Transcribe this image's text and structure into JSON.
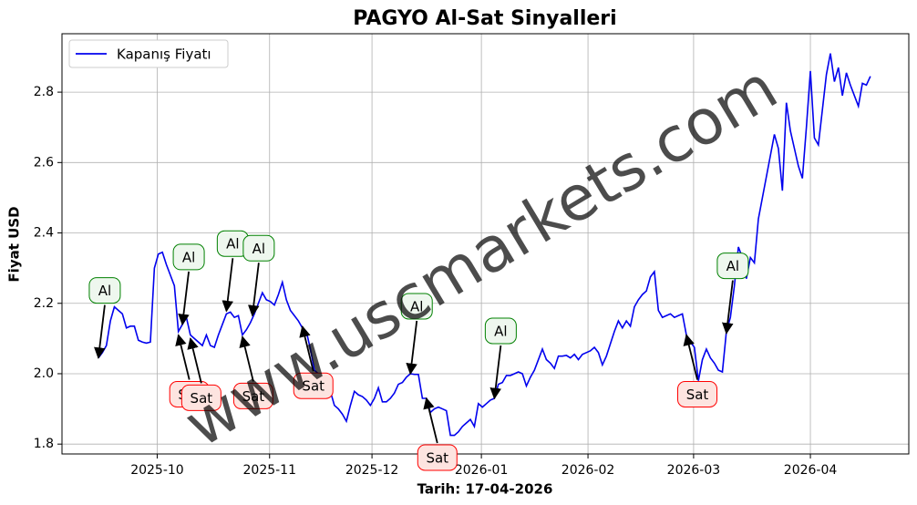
{
  "chart_data": {
    "type": "line",
    "title": "PAGYO Al-Sat Sinyalleri",
    "x_label": "Tarih: 17-04-2026",
    "y_label": "Fiyat USD",
    "series": [
      {
        "name": "Kapanış Fiyatı",
        "color": "#0000ee",
        "values": [
          2.045,
          2.06,
          2.08,
          2.15,
          2.19,
          2.18,
          2.17,
          2.13,
          2.135,
          2.135,
          2.095,
          2.09,
          2.087,
          2.09,
          2.3,
          2.34,
          2.345,
          2.31,
          2.28,
          2.25,
          2.12,
          2.14,
          2.16,
          2.11,
          2.1,
          2.09,
          2.08,
          2.11,
          2.08,
          2.075,
          2.11,
          2.14,
          2.17,
          2.175,
          2.16,
          2.165,
          2.11,
          2.125,
          2.145,
          2.17,
          2.2,
          2.23,
          2.21,
          2.205,
          2.195,
          2.225,
          2.26,
          2.21,
          2.18,
          2.165,
          2.15,
          2.13,
          2.12,
          2.07,
          2.01,
          2.0,
          1.98,
          1.96,
          1.95,
          1.91,
          1.9,
          1.885,
          1.865,
          1.91,
          1.95,
          1.94,
          1.935,
          1.925,
          1.91,
          1.93,
          1.96,
          1.92,
          1.92,
          1.93,
          1.945,
          1.97,
          1.975,
          1.99,
          2.0,
          1.998,
          1.998,
          1.93,
          1.93,
          1.89,
          1.9,
          1.905,
          1.9,
          1.895,
          1.825,
          1.825,
          1.835,
          1.85,
          1.86,
          1.87,
          1.85,
          1.915,
          1.905,
          1.915,
          1.925,
          1.93,
          1.97,
          1.975,
          1.995,
          1.995,
          2.0,
          2.005,
          2.0,
          1.965,
          1.99,
          2.01,
          2.04,
          2.07,
          2.04,
          2.03,
          2.015,
          2.05,
          2.05,
          2.052,
          2.045,
          2.055,
          2.04,
          2.055,
          2.06,
          2.065,
          2.075,
          2.06,
          2.025,
          2.05,
          2.085,
          2.12,
          2.15,
          2.13,
          2.15,
          2.135,
          2.19,
          2.21,
          2.225,
          2.235,
          2.275,
          2.29,
          2.18,
          2.16,
          2.165,
          2.17,
          2.16,
          2.165,
          2.17,
          2.11,
          2.09,
          2.075,
          1.98,
          2.04,
          2.07,
          2.045,
          2.03,
          2.01,
          2.005,
          2.12,
          2.16,
          2.25,
          2.36,
          2.33,
          2.27,
          2.33,
          2.315,
          2.44,
          2.5,
          2.56,
          2.62,
          2.68,
          2.64,
          2.52,
          2.77,
          2.69,
          2.64,
          2.59,
          2.555,
          2.7,
          2.86,
          2.67,
          2.65,
          2.75,
          2.85,
          2.91,
          2.83,
          2.87,
          2.79,
          2.855,
          2.82,
          2.79,
          2.76,
          2.825,
          2.82,
          2.845
        ]
      }
    ],
    "xlim": [
      -9.1,
      202.6
    ],
    "xticks": [
      {
        "value": 14.7,
        "label": "2025-10"
      },
      {
        "value": 42.8,
        "label": "2025-11"
      },
      {
        "value": 68.4,
        "label": "2025-12"
      },
      {
        "value": 95.75,
        "label": "2026-01"
      },
      {
        "value": 122.4,
        "label": "2026-02"
      },
      {
        "value": 148.8,
        "label": "2026-03"
      },
      {
        "value": 178,
        "label": "2026-04"
      }
    ],
    "ylim": [
      1.772,
      2.966
    ],
    "yticks": [
      1.8,
      {
        "value": 2,
        "label": "2.0"
      },
      2.2,
      2.4,
      2.6,
      2.8
    ],
    "grid": true,
    "legend": "upper left",
    "annotations": [
      {
        "text": "Al",
        "x": 0,
        "y": 2.045,
        "color": "green"
      },
      {
        "text": "Sat",
        "x": 20,
        "y": 2.11,
        "color": "red"
      },
      {
        "text": "Al",
        "x": 21,
        "y": 2.14,
        "color": "green"
      },
      {
        "text": "Sat",
        "x": 23,
        "y": 2.1,
        "color": "red"
      },
      {
        "text": "Al",
        "x": 32,
        "y": 2.178,
        "color": "green"
      },
      {
        "text": "Sat",
        "x": 36,
        "y": 2.105,
        "color": "red"
      },
      {
        "text": "Al",
        "x": 38.5,
        "y": 2.165,
        "color": "green"
      },
      {
        "text": "Sat",
        "x": 51,
        "y": 2.134,
        "color": "red"
      },
      {
        "text": "Al",
        "x": 78,
        "y": 2.0,
        "color": "green"
      },
      {
        "text": "Sat",
        "x": 82,
        "y": 1.93,
        "color": "red"
      },
      {
        "text": "Al",
        "x": 99,
        "y": 1.93,
        "color": "green"
      },
      {
        "text": "Sat",
        "x": 147,
        "y": 2.11,
        "color": "red"
      },
      {
        "text": "Al",
        "x": 157,
        "y": 2.115,
        "color": "green"
      }
    ],
    "watermark": "www.uscmarkets.com"
  }
}
